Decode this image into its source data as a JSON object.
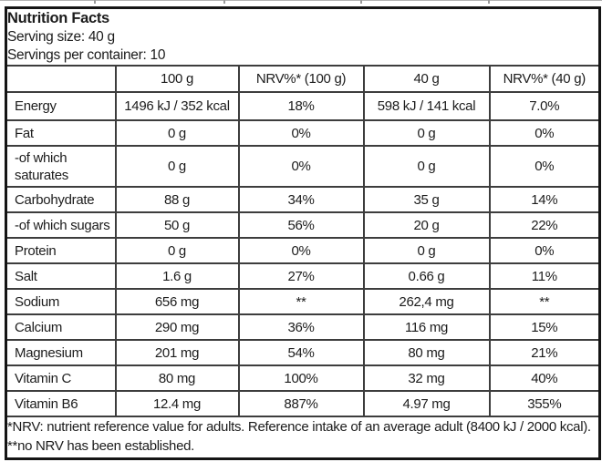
{
  "header": {
    "title": "Nutrition Facts",
    "serving_size_line": "Serving size: 40 g",
    "servings_per_container_line": "Servings per container: 10"
  },
  "table": {
    "columns": [
      "",
      "100 g",
      "NRV%* (100 g)",
      "40 g",
      "NRV%* (40 g)"
    ],
    "rows": [
      {
        "label": "Energy",
        "values": [
          "1496 kJ / 352 kcal",
          "18%",
          "598 kJ / 141 kcal",
          "7.0%"
        ]
      },
      {
        "label": "Fat",
        "values": [
          "0 g",
          "0%",
          "0 g",
          "0%"
        ]
      },
      {
        "label": "-of which saturates",
        "values": [
          "0 g",
          "0%",
          "0 g",
          "0%"
        ]
      },
      {
        "label": "Carbohydrate",
        "values": [
          "88 g",
          "34%",
          "35 g",
          "14%"
        ]
      },
      {
        "label": "-of which sugars",
        "values": [
          "50 g",
          "56%",
          "20 g",
          "22%"
        ]
      },
      {
        "label": "Protein",
        "values": [
          "0 g",
          "0%",
          "0 g",
          "0%"
        ]
      },
      {
        "label": "Salt",
        "values": [
          "1.6 g",
          "27%",
          "0.66 g",
          "11%"
        ]
      },
      {
        "label": "Sodium",
        "values": [
          "656 mg",
          "**",
          "262,4 mg",
          "**"
        ]
      },
      {
        "label": "Calcium",
        "values": [
          "290 mg",
          "36%",
          "116 mg",
          "15%"
        ]
      },
      {
        "label": "Magnesium",
        "values": [
          "201 mg",
          "54%",
          "80 mg",
          "21%"
        ]
      },
      {
        "label": "Vitamin C",
        "values": [
          "80 mg",
          "100%",
          "32 mg",
          "40%"
        ]
      },
      {
        "label": "Vitamin B6",
        "values": [
          "12.4 mg",
          "887%",
          "4.97 mg",
          "355%"
        ]
      }
    ]
  },
  "footnote": "*NRV: nutrient reference value for adults. Reference intake of an average adult (8400 kJ / 2000 kcal). **no NRV has been established.",
  "colors": {
    "border_strong": "#151515",
    "border_inner": "#3d3d3d",
    "text": "#1c1c1c",
    "background": "#ffffff"
  }
}
